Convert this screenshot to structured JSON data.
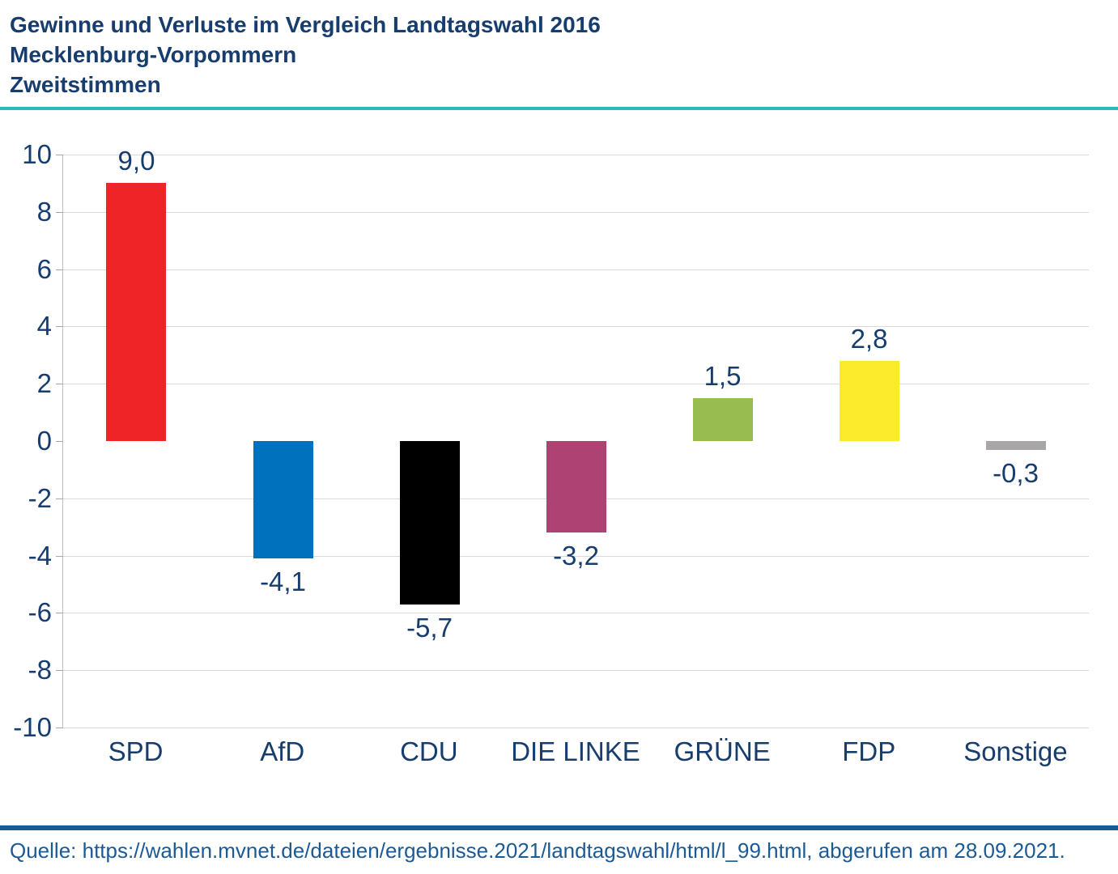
{
  "header": {
    "title_line1": "Gewinne und Verluste im Vergleich Landtagswahl 2016",
    "title_line2": "Mecklenburg-Vorpommern",
    "title_line3": "Zweitstimmen"
  },
  "chart_data": {
    "type": "bar",
    "title": "Gewinne und Verluste im Vergleich Landtagswahl 2016 — Mecklenburg-Vorpommern — Zweitstimmen",
    "categories": [
      "SPD",
      "AfD",
      "CDU",
      "DIE LINKE",
      "GRÜNE",
      "FDP",
      "Sonstige"
    ],
    "values": [
      9.0,
      -4.1,
      -5.7,
      -3.2,
      1.5,
      2.8,
      -0.3
    ],
    "value_labels": [
      "9,0",
      "-4,1",
      "-5,7",
      "-3,2",
      "1,5",
      "2,8",
      "-0,3"
    ],
    "bar_colors": [
      "#ee2426",
      "#0071bd",
      "#000000",
      "#ad4273",
      "#99bc50",
      "#fcea2d",
      "#a8a6a7"
    ],
    "xlabel": "",
    "ylabel": "",
    "ylim": [
      -10,
      10
    ],
    "ytick_step": 2,
    "grid": true,
    "legend": "none"
  },
  "colors": {
    "navy_text": "#173d6e",
    "zero_line": "#1b5a94",
    "bottom_rule": "#1b5a94",
    "teal_divider": "#2ab9ba",
    "gridline": "#d9d9d9",
    "axis_line": "#bfbfbf"
  },
  "footer": {
    "source": "Quelle: https://wahlen.mvnet.de/dateien/ergebnisse.2021/landtagswahl/html/l_99.html, abgerufen am 28.09.2021."
  }
}
